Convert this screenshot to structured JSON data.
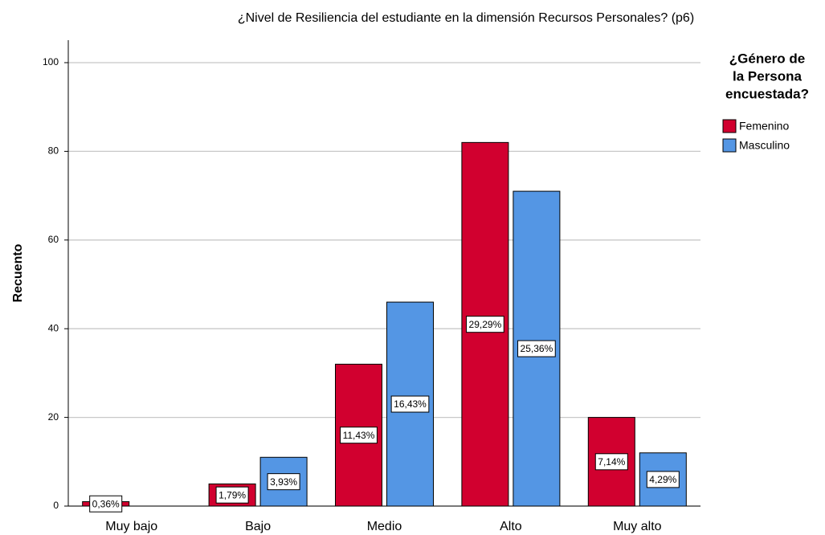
{
  "chart_data": {
    "type": "bar",
    "title": "¿Nivel de Resiliencia del estudiante en la dimensión Recursos Personales? (p6)",
    "y_label": "Recuento",
    "categories": [
      "Muy bajo",
      "Bajo",
      "Medio",
      "Alto",
      "Muy alto"
    ],
    "series": [
      {
        "name": "Femenino",
        "color": "#d1002f",
        "values": [
          1,
          5,
          32,
          82,
          20
        ],
        "value_labels": [
          "0,36%",
          "1,79%",
          "11,43%",
          "29,29%",
          "7,14%"
        ]
      },
      {
        "name": "Masculino",
        "color": "#5496e4",
        "values": [
          null,
          11,
          46,
          71,
          12
        ],
        "value_labels": [
          null,
          "3,93%",
          "16,43%",
          "25,36%",
          "4,29%"
        ]
      }
    ],
    "ylim": [
      0,
      100
    ],
    "yticks": [
      0,
      20,
      40,
      60,
      80,
      100
    ],
    "grid": true,
    "legend_title": [
      "¿Género de",
      "la Persona",
      "encuestada?"
    ],
    "legend": "right"
  }
}
